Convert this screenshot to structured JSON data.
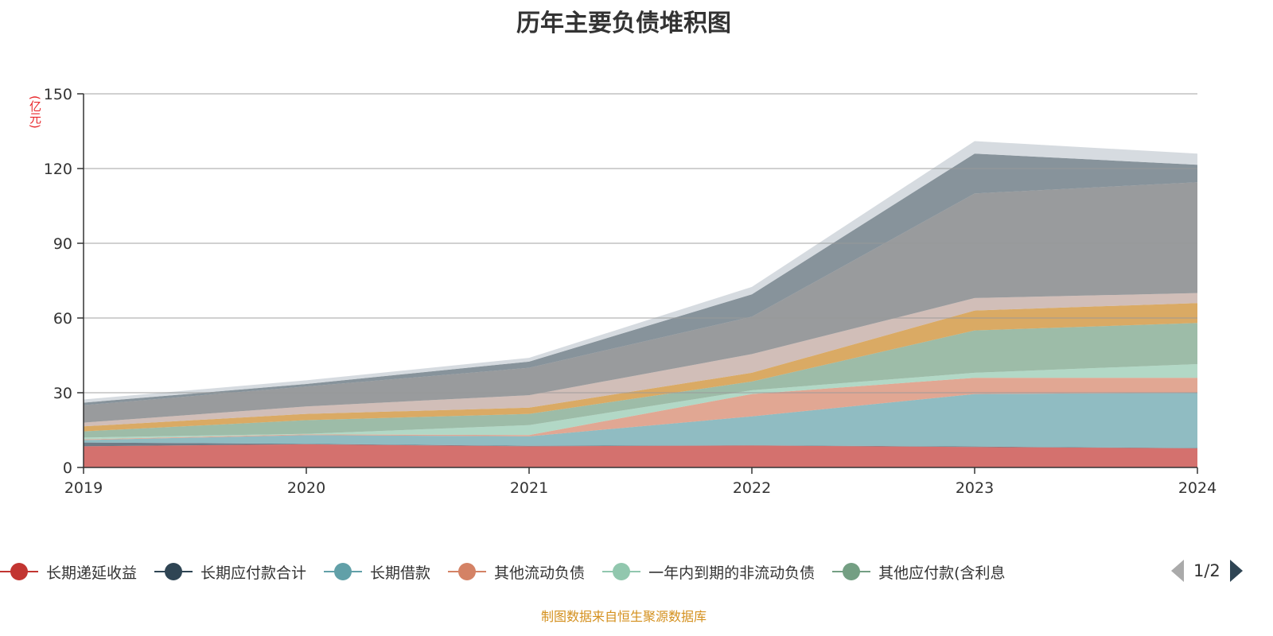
{
  "chart_data": {
    "type": "area",
    "stacked": true,
    "title": "历年主要负债堆积图",
    "ylabel": "(亿元)",
    "xlabel": "",
    "x": [
      "2019",
      "2020",
      "2021",
      "2022",
      "2023",
      "2024"
    ],
    "ylim": [
      0,
      150
    ],
    "yticks": [
      0,
      30,
      60,
      90,
      120,
      150
    ],
    "grid": true,
    "legend_position": "bottom",
    "legend_page": "1/2",
    "series": [
      {
        "name": "长期递延收益",
        "color": "#c23531",
        "values": [
          8.5,
          9.3,
          8.5,
          8.8,
          8.2,
          7.7
        ]
      },
      {
        "name": "长期应付款合计",
        "color": "#2f4554",
        "values": [
          1.5,
          0.2,
          0.2,
          0.1,
          0.2,
          0.1
        ]
      },
      {
        "name": "长期借款",
        "color": "#61a0a8",
        "values": [
          1.0,
          3.5,
          3.8,
          11.6,
          21.1,
          22.2
        ]
      },
      {
        "name": "其他流动负债",
        "color": "#d48265",
        "values": [
          0.3,
          0.3,
          0.5,
          9.0,
          6.5,
          6.0
        ]
      },
      {
        "name": "一年内到期的非流动负债",
        "color": "#91c7ae",
        "values": [
          0.7,
          0.2,
          4.0,
          1.5,
          2.0,
          5.5
        ]
      },
      {
        "name": "其他应付款(含利息",
        "color": "#749f83",
        "values": [
          2.5,
          5.5,
          4.5,
          3.5,
          17.0,
          16.5
        ]
      },
      {
        "color": "#ca8622",
        "values": [
          2.0,
          2.5,
          2.5,
          3.5,
          8.0,
          8.0
        ]
      },
      {
        "color": "#bda29a",
        "values": [
          1.5,
          3.0,
          5.0,
          7.5,
          5.0,
          4.0
        ]
      },
      {
        "color": "#6e7074",
        "values": [
          7.0,
          8.0,
          11.0,
          15.0,
          42.0,
          44.5
        ]
      },
      {
        "color": "#546570",
        "values": [
          1.0,
          1.0,
          2.5,
          9.0,
          16.0,
          7.0
        ]
      },
      {
        "color": "#c4ccd3",
        "values": [
          1.3,
          1.5,
          1.5,
          3.0,
          5.0,
          4.5
        ]
      }
    ]
  },
  "source": "制图数据来自恒生聚源数据库"
}
